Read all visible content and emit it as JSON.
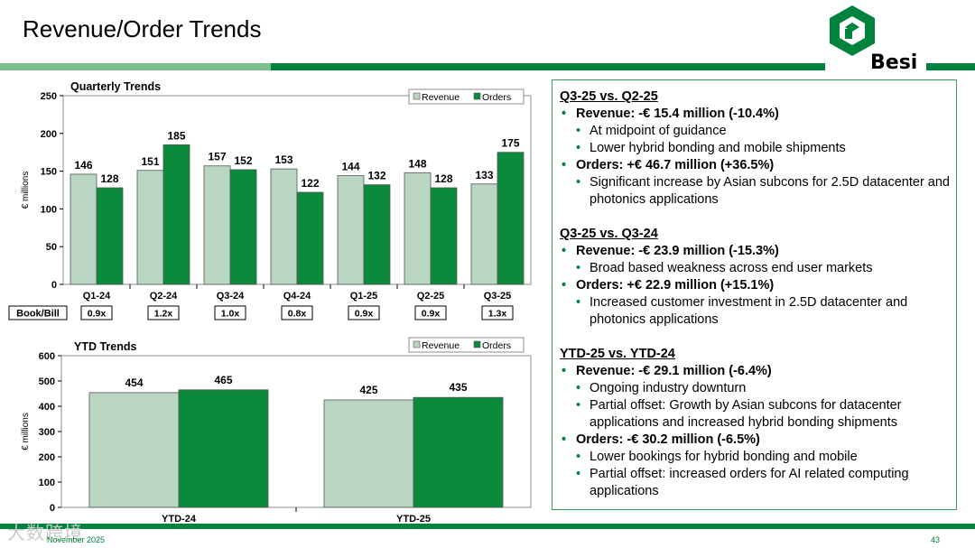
{
  "title": "Revenue/Order Trends",
  "logo": {
    "text": "Besi"
  },
  "colors": {
    "revenue": "#b8d6c1",
    "orders": "#0a8a3a",
    "brand": "#00843d"
  },
  "legend": {
    "revenue": "Revenue",
    "orders": "Orders"
  },
  "book_bill_label": "Book/Bill",
  "chart_data": [
    {
      "type": "bar",
      "title": "Quarterly Trends",
      "ylabel": "€ millions",
      "ylim": [
        0,
        250
      ],
      "yticks": [
        0,
        50,
        100,
        150,
        200,
        250
      ],
      "grid": false,
      "legend": "top-right",
      "categories": [
        "Q1-24",
        "Q2-24",
        "Q3-24",
        "Q4-24",
        "Q1-25",
        "Q2-25",
        "Q3-25"
      ],
      "series": [
        {
          "name": "Revenue",
          "values": [
            146,
            151,
            157,
            153,
            144,
            148,
            133
          ]
        },
        {
          "name": "Orders",
          "values": [
            128,
            185,
            152,
            122,
            132,
            128,
            175
          ]
        }
      ],
      "book_bill": [
        "0.9x",
        "1.2x",
        "1.0x",
        "0.8x",
        "0.9x",
        "0.9x",
        "1.3x"
      ]
    },
    {
      "type": "bar",
      "title": "YTD Trends",
      "ylabel": "€ millions",
      "ylim": [
        0,
        600
      ],
      "yticks": [
        0,
        100,
        200,
        300,
        400,
        500,
        600
      ],
      "grid": false,
      "legend": "top-right",
      "categories": [
        "YTD-24",
        "YTD-25"
      ],
      "series": [
        {
          "name": "Revenue",
          "values": [
            454,
            425
          ]
        },
        {
          "name": "Orders",
          "values": [
            465,
            435
          ]
        }
      ]
    }
  ],
  "sections": [
    {
      "title": "Q3-25 vs. Q2-25",
      "items": [
        {
          "text": "Revenue: -€ 15.4 million (-10.4%)",
          "sub": [
            "At midpoint of guidance",
            "Lower hybrid bonding and mobile shipments"
          ]
        },
        {
          "text": "Orders: +€ 46.7 million (+36.5%)",
          "sub": [
            "Significant increase by Asian subcons for 2.5D datacenter and photonics applications"
          ]
        }
      ]
    },
    {
      "title": "Q3-25 vs. Q3-24",
      "items": [
        {
          "text": "Revenue: -€ 23.9 million (-15.3%)",
          "sub": [
            "Broad based weakness across end user markets"
          ]
        },
        {
          "text": "Orders: +€ 22.9 million (+15.1%)",
          "sub": [
            "Increased customer investment in 2.5D datacenter and photonics applications"
          ]
        }
      ]
    },
    {
      "title": "YTD-25 vs. YTD-24",
      "items": [
        {
          "text": "Revenue: -€ 29.1 million (-6.4%)",
          "sub": [
            "Ongoing industry downturn",
            "Partial offset: Growth by Asian subcons for datacenter applications and increased hybrid bonding shipments"
          ]
        },
        {
          "text": "Orders: -€ 30.2 million (-6.5%)",
          "sub": [
            "Lower bookings for hybrid bonding and mobile",
            "Partial offset: increased orders for AI related computing applications"
          ]
        }
      ]
    }
  ],
  "footer": {
    "date": "November 2025",
    "page": "43",
    "watermark": "大数跨境"
  }
}
